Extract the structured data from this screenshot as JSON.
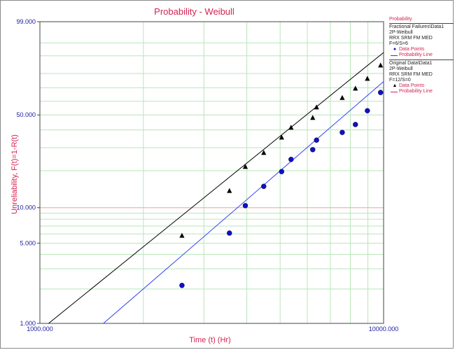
{
  "chart_data": {
    "type": "scatter",
    "title": "Probability - Weibull",
    "xlabel": "Time (t) (Hr)",
    "ylabel": "Unreliability, F(t)=1-R(t)",
    "xscale": "log",
    "yscale": "weibull",
    "xlim": [
      1000,
      10000
    ],
    "ylim": [
      1,
      99
    ],
    "x_ticks": [
      "1000.000",
      "10000.000"
    ],
    "y_ticks": [
      {
        "value": 99,
        "label": "99.000"
      },
      {
        "value": 50,
        "label": "50.000"
      },
      {
        "value": 10,
        "label": "10.000"
      },
      {
        "value": 5,
        "label": "5.000"
      },
      {
        "value": 1,
        "label": "1.000"
      }
    ],
    "grid": true,
    "legend_position": "right",
    "series": [
      {
        "name": "Fractional Failures\\Data1",
        "marker": "triangle",
        "color": "#000000",
        "line_color": "#000000",
        "points": [
          {
            "x": 2590,
            "y": 5.8
          },
          {
            "x": 3560,
            "y": 13.8
          },
          {
            "x": 3960,
            "y": 21.5
          },
          {
            "x": 4480,
            "y": 27.5
          },
          {
            "x": 5050,
            "y": 35.5
          },
          {
            "x": 5380,
            "y": 41.5
          },
          {
            "x": 6220,
            "y": 48.0
          },
          {
            "x": 6380,
            "y": 55.5
          },
          {
            "x": 7580,
            "y": 62.5
          },
          {
            "x": 8280,
            "y": 69.5
          },
          {
            "x": 8970,
            "y": 76.5
          },
          {
            "x": 9800,
            "y": 85.0
          }
        ],
        "line": [
          {
            "x": 1060,
            "y": 1.0
          },
          {
            "x": 10000,
            "y": 91.5
          }
        ]
      },
      {
        "name": "Original Data\\Data1",
        "marker": "circle",
        "color": "#1010c8",
        "line_color": "#2e3ff0",
        "points": [
          {
            "x": 2590,
            "y": 2.15
          },
          {
            "x": 3560,
            "y": 6.1
          },
          {
            "x": 3960,
            "y": 10.4
          },
          {
            "x": 4480,
            "y": 15.0
          },
          {
            "x": 5050,
            "y": 19.7
          },
          {
            "x": 5380,
            "y": 24.5
          },
          {
            "x": 6220,
            "y": 29.0
          },
          {
            "x": 6380,
            "y": 34.0
          },
          {
            "x": 7580,
            "y": 38.5
          },
          {
            "x": 8280,
            "y": 43.5
          },
          {
            "x": 8970,
            "y": 53.0
          },
          {
            "x": 9800,
            "y": 66.5
          }
        ],
        "line": [
          {
            "x": 1530,
            "y": 1.0
          },
          {
            "x": 10000,
            "y": 74.5
          }
        ]
      }
    ]
  },
  "legend": {
    "title": "Probability",
    "groups": [
      {
        "lines": [
          "Fractional Failures\\Data1",
          "2P-Weibull",
          "RRX SRM FM MED",
          "F=6/S=6"
        ],
        "points_label": "Data Points",
        "line_label": "Probability Line",
        "marker_symbol": "▲",
        "marker_color": "#000000",
        "line_color": "#1a3cff"
      },
      {
        "lines": [
          "Original Data\\Data1",
          "2P-Weibull",
          "RRX SRM FM MED",
          "F=12/S=0"
        ],
        "points_label": "Data Points",
        "line_label": "Probability Line",
        "marker_symbol": "▲",
        "marker_color": "#000000",
        "line_color": "#d42352"
      }
    ]
  },
  "colors": {
    "title": "#d42352",
    "grid": "#b8e6b8",
    "ref_line": "#f4a0a0",
    "axis": "#444444"
  }
}
